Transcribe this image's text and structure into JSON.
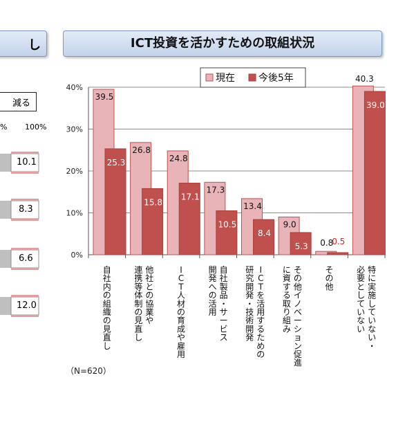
{
  "left_panel": {
    "title_fragment": "し",
    "box_fragment": "減る",
    "axis_fragment": "%",
    "axis_100": "100%",
    "values": [
      "10.1",
      "8.3",
      "6.6",
      "12.0"
    ]
  },
  "chart_data": {
    "type": "bar",
    "title": "ICT投資を活かすための取組状況",
    "note": "（N=620）",
    "ylim": [
      0,
      40
    ],
    "yticks": [
      "0%",
      "10%",
      "20%",
      "30%",
      "40%"
    ],
    "grid": true,
    "legend_position": "top",
    "categories": [
      [
        "自社内の組織の見直し"
      ],
      [
        "他社との協業や",
        "連携等体制の見直し"
      ],
      [
        "ICT人材の育成や雇用"
      ],
      [
        "自社製品・サービス",
        "開発への活用"
      ],
      [
        "ICTを活用するための",
        "研究開発・技術開発"
      ],
      [
        "その他イノベーション促進",
        "に資する取り組み"
      ],
      [
        "その他"
      ],
      [
        "特に実施していない・",
        "必要としていない"
      ]
    ],
    "series": [
      {
        "name": "現在",
        "color": "#e8b4b8",
        "stroke": "#c0504d",
        "values": [
          39.5,
          26.8,
          24.8,
          17.3,
          13.4,
          9.0,
          0.8,
          40.3
        ],
        "labels": [
          "39.5",
          "26.8",
          "24.8",
          "17.3",
          "13.4",
          "9.0",
          "0.8",
          "40.3"
        ]
      },
      {
        "name": "今後5年",
        "color": "#c0504d",
        "stroke": "#a83f3c",
        "values": [
          25.3,
          15.8,
          17.1,
          10.5,
          8.4,
          5.3,
          0.5,
          39.0
        ],
        "labels": [
          "25.3",
          "15.8",
          "17.1",
          "10.5",
          "8.4",
          "5.3",
          "0.5",
          "39.0"
        ]
      }
    ]
  }
}
